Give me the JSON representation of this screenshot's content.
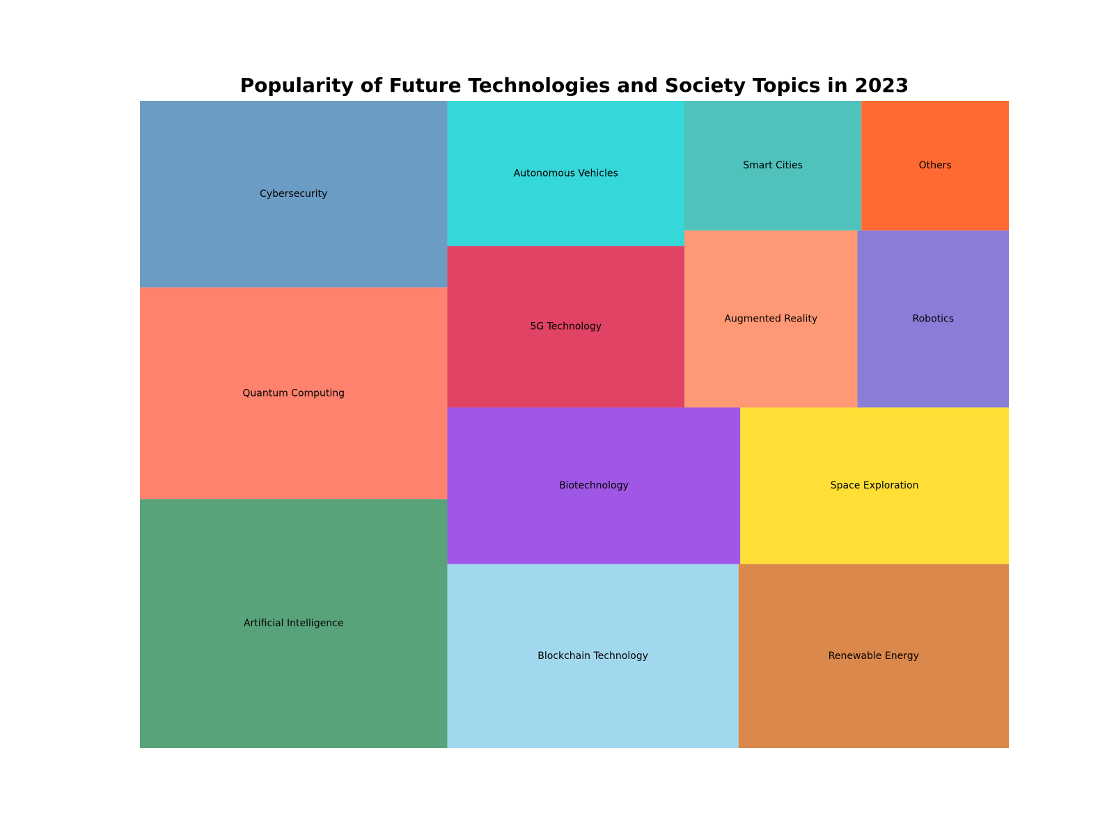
{
  "chart_data": {
    "type": "treemap",
    "title": "Popularity of Future Technologies and Society Topics in 2023",
    "items": [
      {
        "label": "Artificial Intelligence",
        "value": 20,
        "color": "#58A37A"
      },
      {
        "label": "Quantum Computing",
        "value": 17,
        "color": "#FF826E"
      },
      {
        "label": "Cybersecurity",
        "value": 15,
        "color": "#6B9CC4"
      },
      {
        "label": "Blockchain Technology",
        "value": 14,
        "color": "#A2D8EE"
      },
      {
        "label": "Renewable Energy",
        "value": 13,
        "color": "#DB884C"
      },
      {
        "label": "Biotechnology",
        "value": 12,
        "color": "#A057E5"
      },
      {
        "label": "Space Exploration",
        "value": 11,
        "color": "#FFDF35"
      },
      {
        "label": "5G Technology",
        "value": 10,
        "color": "#E04363"
      },
      {
        "label": "Augmented Reality",
        "value": 8,
        "color": "#FF9874"
      },
      {
        "label": "Autonomous Vehicles",
        "value": 9,
        "color": "#36D7D9"
      },
      {
        "label": "Robotics",
        "value": 7,
        "color": "#8A7DD7"
      },
      {
        "label": "Smart Cities",
        "value": 6,
        "color": "#4FC2BC"
      },
      {
        "label": "Others",
        "value": 5,
        "color": "#FF6A33"
      }
    ]
  }
}
